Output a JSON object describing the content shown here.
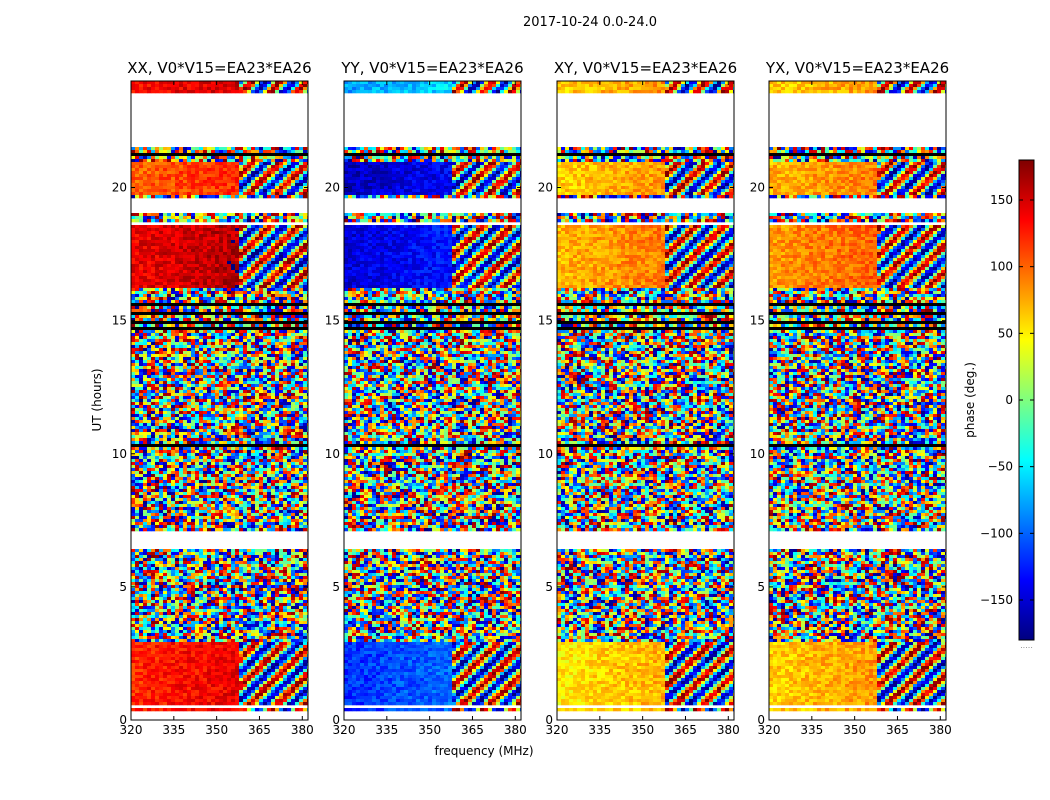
{
  "figure": {
    "suptitle": "2017-10-24 0.0-24.0"
  },
  "chart_data": {
    "type": "heatmap",
    "title": "2017-10-24 0.0-24.0",
    "xlabel": "frequency (MHz)",
    "ylabel": "UT (hours)",
    "xlim": [
      320,
      382
    ],
    "ylim": [
      0,
      24
    ],
    "xticks": [
      320,
      335,
      350,
      365,
      380
    ],
    "yticks": [
      0,
      5,
      10,
      15,
      20
    ],
    "panels": [
      {
        "title": "XX, V0*V15=EA23*EA26",
        "corr": "XX",
        "coherent_phase": [
          {
            "band": [
              16.2,
              18.6
            ],
            "phase": 140
          },
          {
            "band": [
              19.7,
              21.0
            ],
            "phase": 100
          },
          {
            "band": [
              0.3,
              2.9
            ],
            "phase": 120
          },
          {
            "band": [
              23.0,
              24.0
            ],
            "phase": 130
          }
        ]
      },
      {
        "title": "YY, V0*V15=EA23*EA26",
        "corr": "YY",
        "coherent_phase": [
          {
            "band": [
              16.2,
              18.6
            ],
            "phase": -150
          },
          {
            "band": [
              19.7,
              21.0
            ],
            "phase": -160
          },
          {
            "band": [
              0.3,
              2.9
            ],
            "phase": -120
          },
          {
            "band": [
              23.0,
              24.0
            ],
            "phase": -80
          }
        ]
      },
      {
        "title": "XY, V0*V15=EA23*EA26",
        "corr": "XY",
        "coherent_phase": [
          {
            "band": [
              16.2,
              18.6
            ],
            "phase": 70
          },
          {
            "band": [
              19.7,
              21.0
            ],
            "phase": 60
          },
          {
            "band": [
              0.3,
              2.9
            ],
            "phase": 50
          },
          {
            "band": [
              23.0,
              24.0
            ],
            "phase": 60
          }
        ]
      },
      {
        "title": "YX, V0*V15=EA23*EA26",
        "corr": "YX",
        "coherent_phase": [
          {
            "band": [
              16.2,
              18.6
            ],
            "phase": 80
          },
          {
            "band": [
              19.7,
              21.0
            ],
            "phase": 70
          },
          {
            "band": [
              0.3,
              2.9
            ],
            "phase": 60
          },
          {
            "band": [
              23.0,
              24.0
            ],
            "phase": 60
          }
        ]
      }
    ],
    "blank_time_ranges": [
      [
        0.0,
        0.3
      ],
      [
        0.5,
        0.55
      ],
      [
        6.45,
        7.1
      ],
      [
        7.5,
        7.55
      ],
      [
        14.6,
        14.65
      ],
      [
        19.0,
        19.65
      ],
      [
        21.55,
        23.5
      ],
      [
        18.6,
        18.65
      ]
    ],
    "flagged_time_ranges": [
      [
        14.9,
        15.0
      ],
      [
        15.2,
        15.35
      ],
      [
        15.5,
        15.7
      ],
      [
        14.7,
        14.75
      ],
      [
        10.3,
        10.35
      ],
      [
        19.3,
        19.4
      ],
      [
        21.2,
        21.25
      ]
    ],
    "colorbar": {
      "label": "phase (deg.)",
      "range": [
        -180,
        180
      ],
      "ticks": [
        -150,
        -100,
        -50,
        0,
        50,
        100,
        150
      ],
      "tick_labels": [
        "−150",
        "−100",
        "−50",
        "0",
        "50",
        "100",
        "150"
      ],
      "colormap": "jet",
      "colors": [
        "#00007f",
        "#0000ff",
        "#007fff",
        "#00ffff",
        "#7fff7f",
        "#ffff00",
        "#ff7f00",
        "#ff0000",
        "#7f0000"
      ],
      "footer": "....."
    }
  }
}
